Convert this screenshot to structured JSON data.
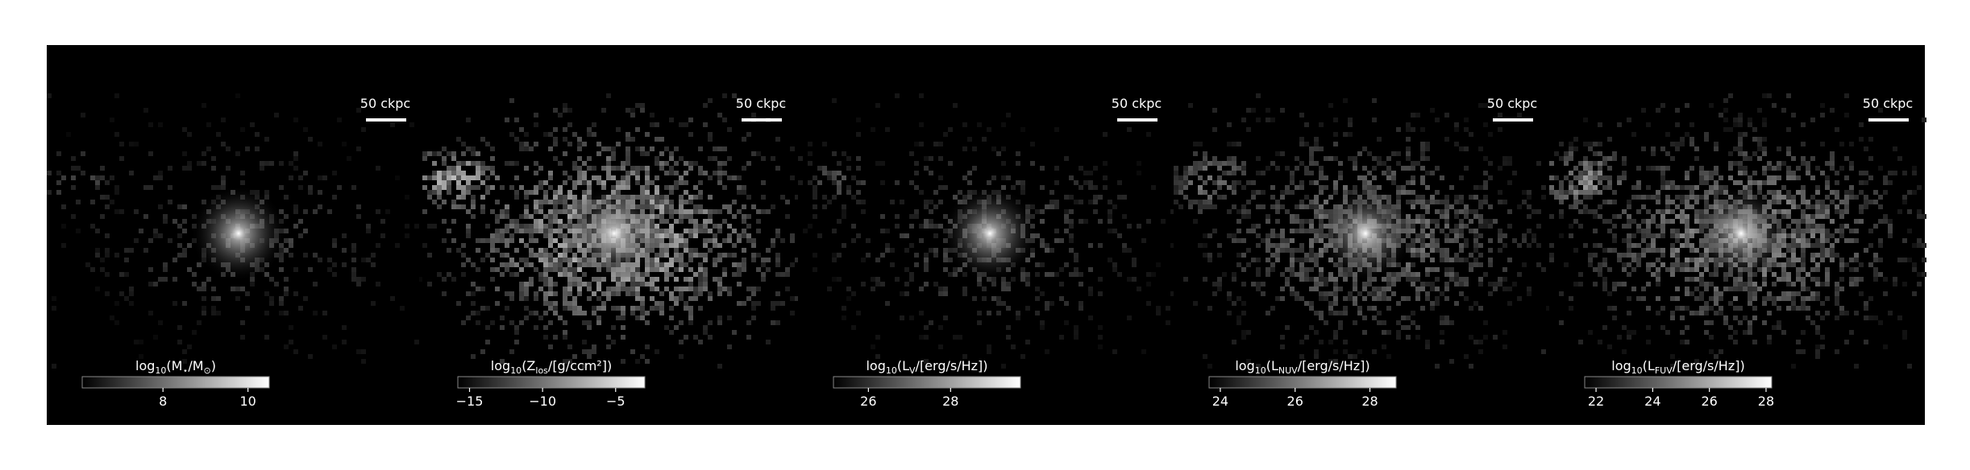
{
  "chart_data": [
    {
      "type": "image",
      "scalebar": "50 ckpc",
      "colorbar_label": [
        "log",
        "10",
        "(M",
        "⋆",
        "/M",
        "⊙",
        ")"
      ],
      "xlim": [
        6.1,
        10.5
      ],
      "xticks": [
        8,
        10
      ]
    },
    {
      "type": "image",
      "scalebar": "50 ckpc",
      "colorbar_label": [
        "log",
        "10",
        "(Z",
        "los",
        "/[g/ccm²])"
      ],
      "xlim": [
        -15.8,
        -3.0
      ],
      "xticks": [
        {
          "value": -15,
          "label": "−15"
        },
        {
          "value": -10,
          "label": "−10"
        },
        {
          "value": -5,
          "label": "−5"
        }
      ]
    },
    {
      "type": "image",
      "scalebar": "50 ckpc",
      "colorbar_label": [
        "log",
        "10",
        "(L",
        "V",
        "/[erg/s/Hz])"
      ],
      "xlim": [
        25.15,
        29.7
      ],
      "xticks": [
        26,
        28
      ]
    },
    {
      "type": "image",
      "scalebar": "50 ckpc",
      "colorbar_label": [
        "log",
        "10",
        "(L",
        "NUV",
        "/[erg/s/Hz])"
      ],
      "xlim": [
        23.7,
        28.7
      ],
      "xticks": [
        24,
        26,
        28
      ]
    },
    {
      "type": "image",
      "scalebar": "50 ckpc",
      "colorbar_label": [
        "log",
        "10",
        "(L",
        "FUV",
        "/[erg/s/Hz])"
      ],
      "xlim": [
        21.6,
        28.2
      ],
      "xticks": [
        22,
        24,
        26,
        28
      ]
    }
  ]
}
